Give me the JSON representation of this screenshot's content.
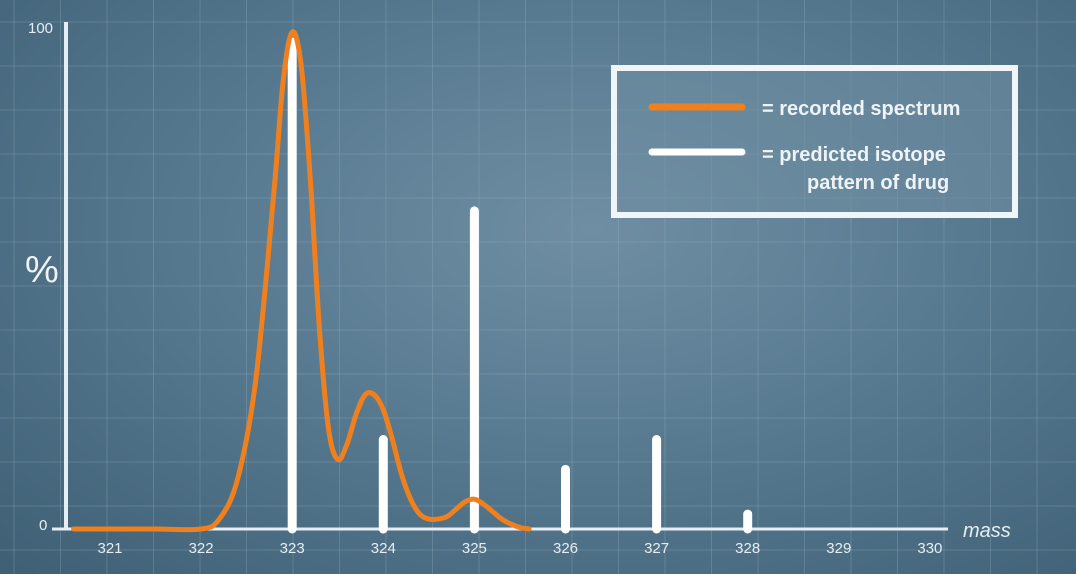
{
  "chart_data": {
    "type": "bar",
    "title": "",
    "xlabel": "mass",
    "ylabel": "%",
    "xlim": [
      320.6,
      330.4
    ],
    "ylim": [
      0,
      100
    ],
    "y_tick_labels": [
      "0",
      "100"
    ],
    "categories": [
      "321",
      "322",
      "323",
      "324",
      "325",
      "326",
      "327",
      "328",
      "329",
      "330"
    ],
    "grid": true,
    "legend_position": "top-right",
    "series": [
      {
        "name": "= recorded spectrum",
        "kind": "line",
        "color": "#f0801e",
        "x": [
          320.6,
          321.0,
          321.5,
          322.0,
          322.2,
          322.4,
          322.6,
          322.8,
          322.9,
          323.0,
          323.1,
          323.2,
          323.3,
          323.4,
          323.5,
          323.6,
          323.7,
          323.8,
          323.9,
          324.0,
          324.1,
          324.2,
          324.3,
          324.4,
          324.5,
          324.6,
          324.7,
          324.8,
          324.9,
          325.0,
          325.1,
          325.2,
          325.3,
          325.4,
          325.5,
          325.6
        ],
        "y": [
          0,
          0,
          0,
          0,
          2,
          10,
          30,
          68,
          90,
          100,
          93,
          70,
          40,
          20,
          14,
          17,
          23,
          27,
          27,
          24,
          18,
          11,
          6,
          3,
          2,
          2,
          2.5,
          4,
          5.5,
          6,
          5,
          3.5,
          2,
          1,
          0.3,
          0
        ]
      },
      {
        "name": "= predicted isotope pattern of drug",
        "kind": "stick",
        "color": "#ffffff",
        "values": [
          0,
          0,
          98,
          18,
          64,
          12,
          18,
          3,
          0,
          0
        ]
      }
    ]
  }
}
